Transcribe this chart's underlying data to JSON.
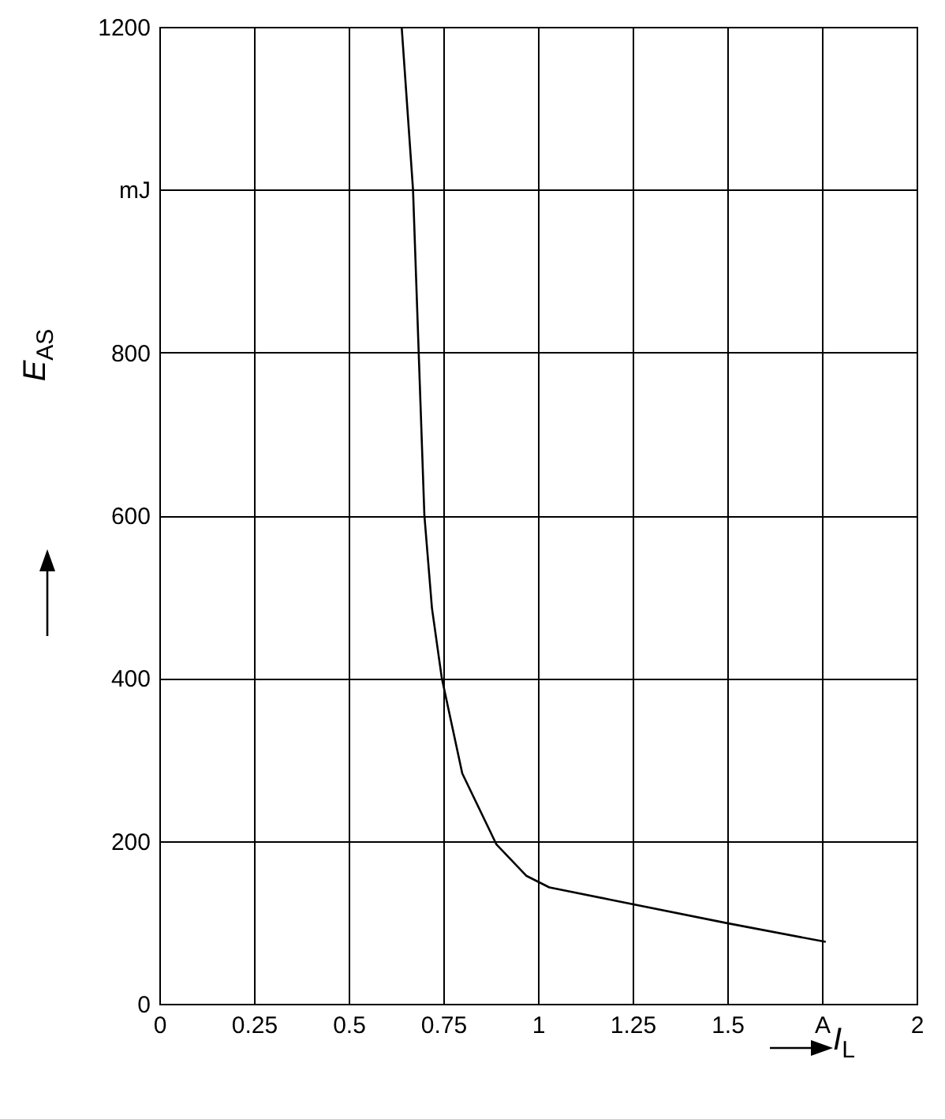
{
  "chart_data": {
    "type": "line",
    "xlabel": "I$_{L}$",
    "ylabel": "E$_{AS}$",
    "x": [
      0.64,
      0.67,
      0.7,
      0.72,
      0.746,
      0.8,
      0.89,
      0.97,
      1.03,
      1.19,
      1.5,
      1.76
    ],
    "series": [
      {
        "color": "#000000",
        "values": [
          1200,
          1000,
          600,
          486,
          400,
          283,
          196,
          157,
          143,
          128,
          99,
          76
        ]
      }
    ],
    "xlim": [
      0,
      2
    ],
    "xticks": [
      0,
      0.25,
      0.5,
      0.75,
      1,
      1.25,
      1.5,
      {
        "value": 1.75,
        "label": "A"
      },
      2
    ],
    "ylim": [
      0,
      1200
    ],
    "yticks": [
      0,
      200,
      400,
      600,
      800,
      {
        "value": 1000,
        "label": "mJ"
      },
      1200
    ],
    "grid": true,
    "marker": "none",
    "line_style": "solid"
  }
}
